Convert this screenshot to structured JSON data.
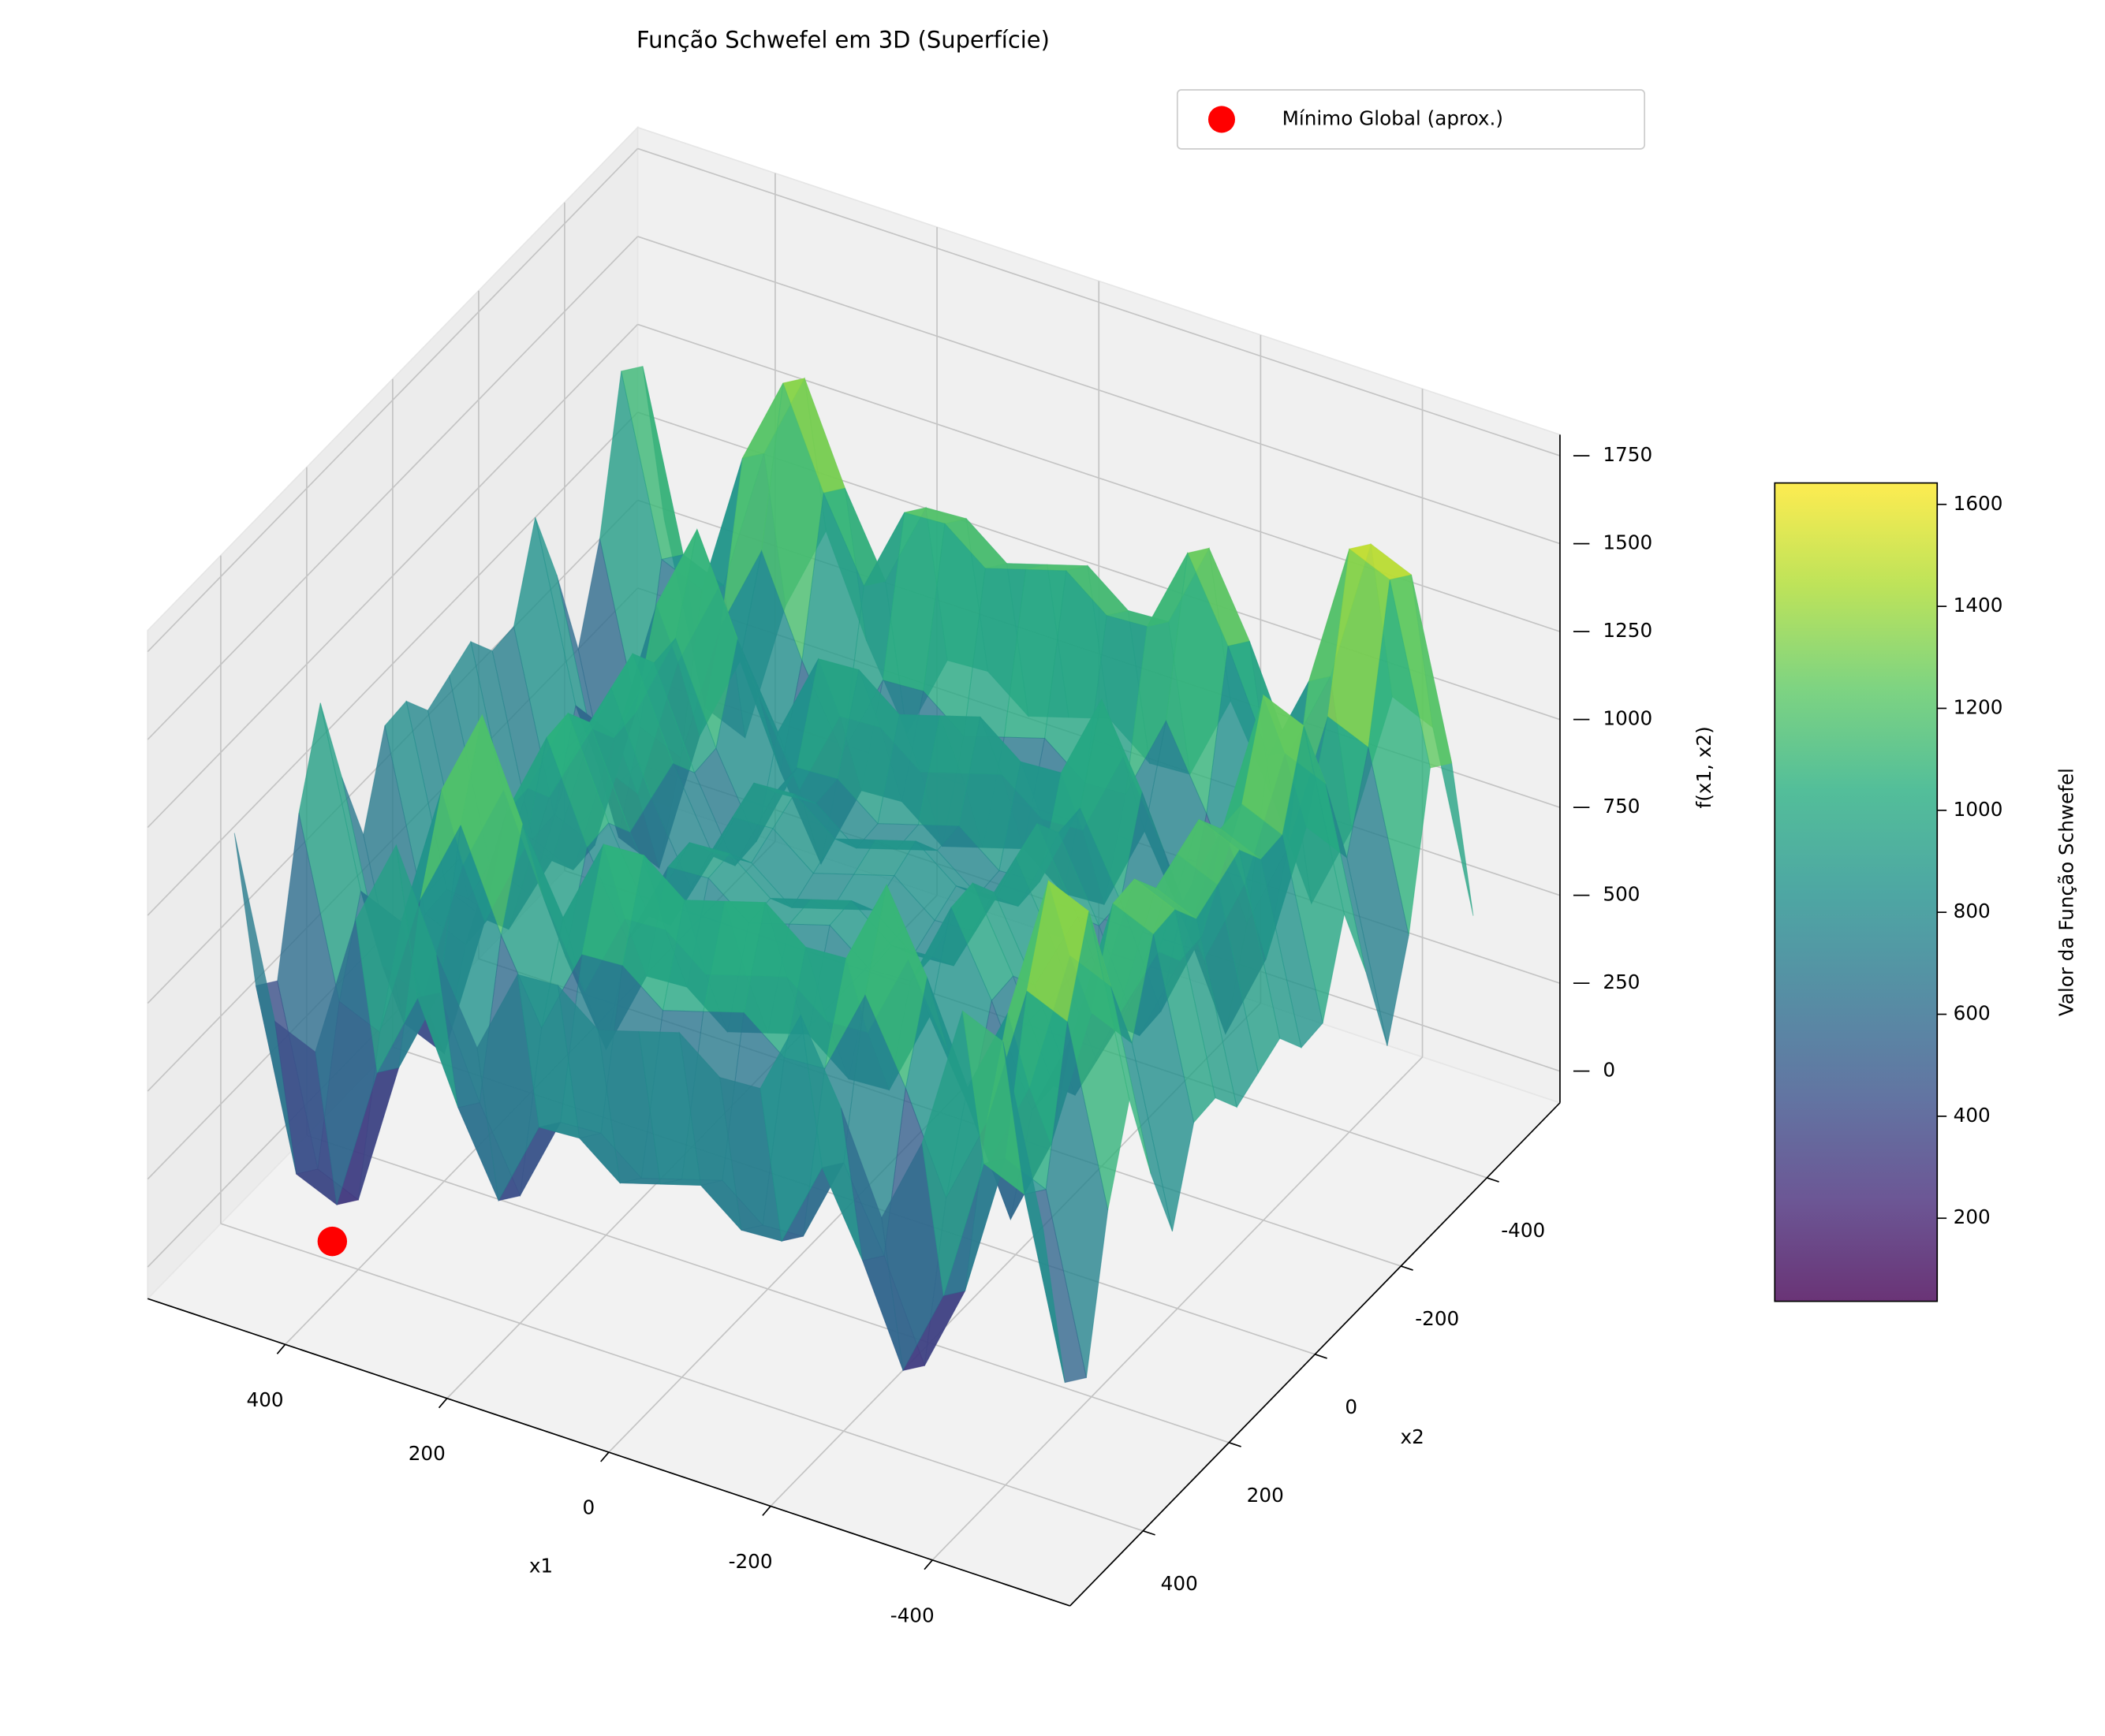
{
  "chart_data": {
    "type": "surface3d",
    "title": "Função Schwefel em 3D (Superfície)",
    "xlabel": "x1",
    "ylabel": "x2",
    "zlabel": "f(x1, x2)",
    "xlim": [
      -570,
      570
    ],
    "ylim": [
      -570,
      570
    ],
    "zlim": [
      -90,
      1810
    ],
    "xticks": [
      -400,
      -200,
      0,
      200,
      400
    ],
    "yticks": [
      -400,
      -200,
      0,
      200,
      400
    ],
    "zticks": [
      0,
      250,
      500,
      750,
      1000,
      1250,
      1500,
      1750
    ],
    "grid": true,
    "legend": "upper right",
    "surface": {
      "colormap": "viridis",
      "alpha": 0.8,
      "x": [
        -500,
        -450,
        -400,
        -350,
        -300,
        -250,
        -200,
        -150,
        -100,
        -50,
        0,
        50,
        100,
        150,
        200,
        250,
        300,
        350,
        400,
        450,
        500
      ],
      "y": [
        -500,
        -450,
        -400,
        -350,
        -300,
        -250,
        -200,
        -150,
        -100,
        -50,
        0,
        50,
        100,
        150,
        200,
        250,
        300,
        350,
        400,
        450,
        500
      ],
      "z": [
        [
          476,
          973,
          1022,
          608,
          357,
          631,
          857,
          610,
          603,
          692,
          657,
          622,
          711,
          704,
          457,
          683,
          957,
          706,
          292,
          341,
          838
        ],
        [
          973,
          1470,
          1519,
          1105,
          854,
          1128,
          1354,
          1107,
          1100,
          1189,
          1154,
          1119,
          1208,
          1201,
          954,
          1180,
          1454,
          1203,
          789,
          838,
          1335
        ],
        [
          1022,
          1519,
          1568,
          1154,
          903,
          1177,
          1403,
          1156,
          1149,
          1238,
          1203,
          1168,
          1257,
          1250,
          1003,
          1229,
          1503,
          1252,
          838,
          887,
          1384
        ],
        [
          608,
          1105,
          1154,
          740,
          489,
          763,
          989,
          742,
          735,
          824,
          789,
          754,
          843,
          836,
          589,
          815,
          1089,
          838,
          424,
          473,
          970
        ],
        [
          357,
          854,
          903,
          489,
          238,
          512,
          738,
          491,
          484,
          573,
          538,
          503,
          592,
          585,
          338,
          564,
          838,
          587,
          173,
          222,
          719
        ],
        [
          631,
          1128,
          1177,
          763,
          512,
          786,
          1012,
          765,
          758,
          847,
          812,
          777,
          866,
          859,
          612,
          838,
          1112,
          861,
          447,
          496,
          993
        ],
        [
          857,
          1354,
          1403,
          989,
          738,
          1012,
          1238,
          991,
          984,
          1073,
          1038,
          1003,
          1092,
          1085,
          838,
          1064,
          1338,
          1087,
          673,
          722,
          1219
        ],
        [
          610,
          1107,
          1156,
          742,
          491,
          765,
          991,
          744,
          737,
          826,
          791,
          756,
          845,
          838,
          591,
          817,
          1091,
          840,
          426,
          475,
          972
        ],
        [
          603,
          1100,
          1149,
          735,
          484,
          758,
          984,
          737,
          730,
          819,
          784,
          749,
          838,
          831,
          584,
          810,
          1084,
          833,
          419,
          468,
          965
        ],
        [
          692,
          1189,
          1238,
          824,
          573,
          847,
          1073,
          826,
          819,
          908,
          873,
          838,
          927,
          920,
          673,
          899,
          1173,
          922,
          508,
          557,
          1054
        ],
        [
          657,
          1154,
          1203,
          789,
          538,
          812,
          1038,
          791,
          784,
          873,
          838,
          803,
          892,
          885,
          638,
          864,
          1138,
          887,
          473,
          522,
          1019
        ],
        [
          622,
          1119,
          1168,
          754,
          503,
          777,
          1003,
          756,
          749,
          838,
          803,
          768,
          857,
          850,
          603,
          829,
          1103,
          852,
          438,
          487,
          984
        ],
        [
          711,
          1208,
          1257,
          843,
          592,
          866,
          1092,
          845,
          838,
          927,
          892,
          857,
          946,
          939,
          692,
          918,
          1192,
          941,
          527,
          576,
          1073
        ],
        [
          704,
          1201,
          1250,
          836,
          585,
          859,
          1085,
          838,
          831,
          920,
          885,
          850,
          939,
          932,
          685,
          911,
          1185,
          934,
          520,
          569,
          1066
        ],
        [
          457,
          954,
          1003,
          589,
          338,
          612,
          838,
          591,
          584,
          673,
          638,
          603,
          692,
          685,
          438,
          664,
          938,
          687,
          273,
          322,
          819
        ],
        [
          683,
          1180,
          1229,
          815,
          564,
          838,
          1064,
          817,
          810,
          899,
          864,
          829,
          918,
          911,
          664,
          890,
          1164,
          913,
          499,
          548,
          1045
        ],
        [
          957,
          1454,
          1503,
          1089,
          838,
          1112,
          1338,
          1091,
          1084,
          1173,
          1138,
          1103,
          1192,
          1185,
          938,
          1164,
          1438,
          1187,
          773,
          822,
          1319
        ],
        [
          706,
          1203,
          1252,
          838,
          587,
          861,
          1087,
          840,
          833,
          922,
          887,
          852,
          941,
          934,
          687,
          913,
          1187,
          936,
          522,
          571,
          1068
        ],
        [
          292,
          789,
          838,
          424,
          173,
          447,
          673,
          426,
          419,
          508,
          473,
          438,
          527,
          520,
          273,
          499,
          773,
          522,
          108,
          157,
          654
        ],
        [
          341,
          838,
          887,
          473,
          222,
          496,
          722,
          475,
          468,
          557,
          522,
          487,
          576,
          569,
          322,
          548,
          822,
          571,
          157,
          206,
          703
        ],
        [
          838,
          1335,
          1384,
          970,
          719,
          993,
          1219,
          972,
          965,
          1054,
          1019,
          984,
          1073,
          1066,
          819,
          1045,
          1319,
          1068,
          654,
          703,
          1200
        ]
      ]
    },
    "point": {
      "name": "Mínimo Global (aprox.)",
      "x": 420.97,
      "y": 420.97,
      "z": 0,
      "color": "#ff0000"
    },
    "colorbar": {
      "label": "Valor da Função Schwefel",
      "lim": [
        37,
        1642
      ],
      "ticks": [
        200,
        400,
        600,
        800,
        1000,
        1200,
        1400,
        1600
      ]
    }
  }
}
